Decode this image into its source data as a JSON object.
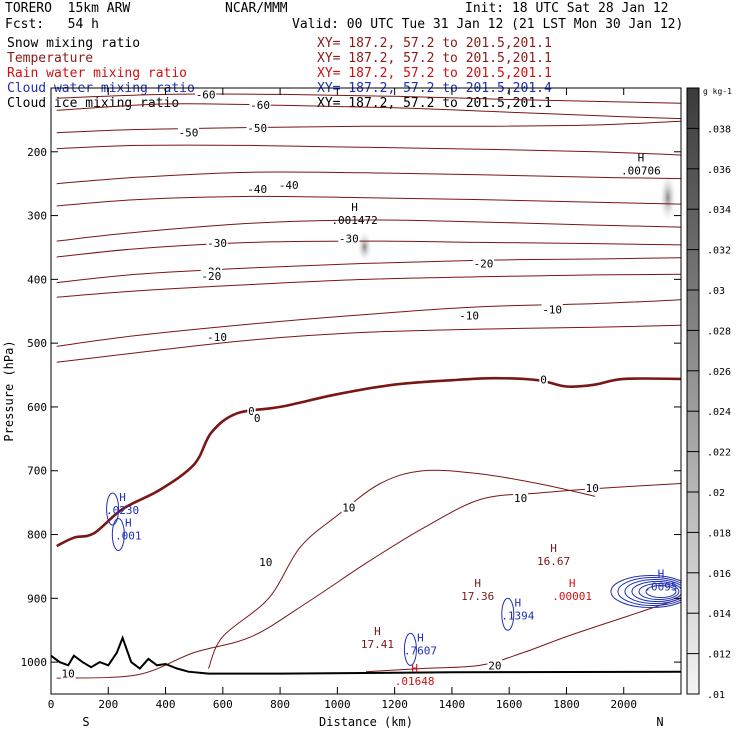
{
  "header": {
    "model": "TORERO  15km ARW",
    "org": "NCAR/MMM",
    "init": "Init: 18 UTC Sat 28 Jan 12",
    "fcst": "Fcst:   54 h",
    "valid": "Valid: 00 UTC Tue 31 Jan 12 (21 LST Mon 30 Jan 12)"
  },
  "legend": [
    {
      "label": "Snow mixing ratio",
      "xy": "XY= 187.2, 57.2 to 201.5,201.1",
      "label_color": "#000000",
      "xy_color": "#8b1a1a"
    },
    {
      "label": "Temperature",
      "xy": "XY= 187.2, 57.2 to 201.5,201.1",
      "label_color": "#8b1a1a",
      "xy_color": "#8b1a1a"
    },
    {
      "label": "Rain water mixing ratio",
      "xy": "XY= 187.2, 57.2 to 201.5,201.1",
      "label_color": "#d01010",
      "xy_color": "#d01010"
    },
    {
      "label": "Cloud water mixing ratio",
      "xy": "XY= 187.2, 57.2 to 201.5,201.4",
      "label_color": "#1e2fb4",
      "xy_color": "#1e2fb4"
    },
    {
      "label": "Cloud ice mixing ratio",
      "xy": "XY= 187.2, 57.2 to 201.5,201.1",
      "label_color": "#000000",
      "xy_color": "#000000"
    }
  ],
  "colors": {
    "temperature": "#7a1616",
    "rain": "#d01010",
    "cloud_water": "#1e2fb4",
    "terrain": "#000000"
  },
  "chart_data": {
    "type": "heatmap",
    "xlabel": "Distance (km)",
    "ylabel": "Pressure (hPa)",
    "xlim": [
      0,
      2200
    ],
    "ylim": [
      1050,
      100
    ],
    "x_ticks": [
      0,
      200,
      400,
      600,
      800,
      1000,
      1200,
      1400,
      1600,
      1800,
      2000
    ],
    "y_ticks": [
      200,
      300,
      400,
      500,
      600,
      700,
      800,
      900,
      1000
    ],
    "x_end_labels": [
      "S",
      "N"
    ],
    "colorbar": {
      "unit": "g kg-1",
      "ticks": [
        ".01",
        ".012",
        ".014",
        ".016",
        ".018",
        ".02",
        ".022",
        ".024",
        ".026",
        ".028",
        ".03",
        ".032",
        ".034",
        ".036",
        ".038"
      ],
      "range": [
        0.01,
        0.04
      ]
    },
    "temperature_contours": [
      {
        "value": -60,
        "label": "-60",
        "points": [
          [
            20,
            116
          ],
          [
            400,
            110
          ],
          [
            800,
            110
          ],
          [
            1200,
            113
          ],
          [
            1600,
            118
          ],
          [
            2000,
            122
          ],
          [
            2200,
            124
          ]
        ],
        "labels_at": [
          [
            540,
            110
          ]
        ]
      },
      {
        "value": -60,
        "label": "-60",
        "points": [
          [
            20,
            135
          ],
          [
            400,
            125
          ],
          [
            800,
            127
          ],
          [
            1200,
            131
          ],
          [
            1600,
            138
          ],
          [
            2000,
            145
          ],
          [
            2200,
            148
          ]
        ],
        "labels_at": [
          [
            730,
            127
          ]
        ]
      },
      {
        "value": -50,
        "label": "-50",
        "points": [
          [
            20,
            170
          ],
          [
            300,
            165
          ],
          [
            700,
            162
          ],
          [
            1100,
            160
          ],
          [
            1500,
            160
          ],
          [
            1900,
            158
          ],
          [
            2200,
            152
          ]
        ],
        "labels_at": [
          [
            480,
            170
          ],
          [
            720,
            163
          ]
        ]
      },
      {
        "value": -50,
        "label": "-50",
        "points": [
          [
            20,
            195
          ],
          [
            300,
            190
          ],
          [
            700,
            190
          ],
          [
            1100,
            193
          ],
          [
            1500,
            196
          ],
          [
            1900,
            200
          ],
          [
            2200,
            205
          ]
        ],
        "labels_at": []
      },
      {
        "value": -40,
        "label": "-40",
        "points": [
          [
            20,
            250
          ],
          [
            300,
            240
          ],
          [
            700,
            232
          ],
          [
            1100,
            233
          ],
          [
            1500,
            236
          ],
          [
            1900,
            240
          ],
          [
            2200,
            242
          ]
        ],
        "labels_at": [
          [
            720,
            258
          ],
          [
            830,
            252
          ]
        ]
      },
      {
        "value": -40,
        "label": "-40",
        "points": [
          [
            20,
            285
          ],
          [
            300,
            275
          ],
          [
            700,
            270
          ],
          [
            1100,
            272
          ],
          [
            1500,
            275
          ],
          [
            1900,
            279
          ],
          [
            2200,
            282
          ]
        ],
        "labels_at": []
      },
      {
        "value": -30,
        "label": "-30",
        "points": [
          [
            20,
            340
          ],
          [
            300,
            326
          ],
          [
            700,
            312
          ],
          [
            1100,
            307
          ],
          [
            1500,
            310
          ],
          [
            1900,
            315
          ],
          [
            2200,
            318
          ]
        ],
        "labels_at": [
          [
            1040,
            336
          ],
          [
            580,
            343
          ]
        ]
      },
      {
        "value": -30,
        "label": "-30",
        "points": [
          [
            20,
            365
          ],
          [
            300,
            352
          ],
          [
            700,
            342
          ],
          [
            1100,
            340
          ],
          [
            1500,
            342
          ],
          [
            1900,
            344
          ],
          [
            2200,
            346
          ]
        ],
        "labels_at": []
      },
      {
        "value": -20,
        "label": "-20",
        "points": [
          [
            20,
            405
          ],
          [
            300,
            392
          ],
          [
            700,
            382
          ],
          [
            1100,
            375
          ],
          [
            1500,
            370
          ],
          [
            1900,
            368
          ],
          [
            2200,
            366
          ]
        ],
        "labels_at": [
          [
            560,
            388
          ],
          [
            560,
            395
          ],
          [
            1510,
            375
          ]
        ]
      },
      {
        "value": -20,
        "label": "-20",
        "points": [
          [
            20,
            428
          ],
          [
            300,
            418
          ],
          [
            700,
            408
          ],
          [
            1100,
            400
          ],
          [
            1500,
            396
          ],
          [
            1900,
            393
          ],
          [
            2200,
            392
          ]
        ],
        "labels_at": []
      },
      {
        "value": -10,
        "label": "-10",
        "points": [
          [
            20,
            505
          ],
          [
            300,
            488
          ],
          [
            700,
            470
          ],
          [
            1100,
            455
          ],
          [
            1500,
            443
          ],
          [
            1900,
            438
          ],
          [
            2200,
            432
          ]
        ],
        "labels_at": [
          [
            580,
            490
          ],
          [
            1460,
            457
          ],
          [
            1750,
            447
          ]
        ]
      },
      {
        "value": -10,
        "label": "-10",
        "points": [
          [
            20,
            530
          ],
          [
            300,
            515
          ],
          [
            700,
            495
          ],
          [
            1100,
            483
          ],
          [
            1500,
            478
          ],
          [
            1900,
            475
          ],
          [
            2200,
            472
          ]
        ],
        "labels_at": []
      },
      {
        "value": 0,
        "label": "0",
        "bold": true,
        "points": [
          [
            20,
            818
          ],
          [
            80,
            805
          ],
          [
            150,
            798
          ],
          [
            250,
            760
          ],
          [
            380,
            730
          ],
          [
            500,
            690
          ],
          [
            560,
            640
          ],
          [
            650,
            610
          ],
          [
            800,
            600
          ],
          [
            1000,
            580
          ],
          [
            1200,
            565
          ],
          [
            1400,
            558
          ],
          [
            1550,
            555
          ],
          [
            1700,
            558
          ],
          [
            1800,
            568
          ],
          [
            1900,
            565
          ],
          [
            2000,
            556
          ],
          [
            2200,
            556
          ]
        ],
        "labels_at": [
          [
            1720,
            557
          ],
          [
            700,
            606
          ],
          [
            720,
            617
          ]
        ]
      },
      {
        "value": 10,
        "label": "10",
        "points": [
          [
            20,
            1025
          ],
          [
            300,
            1020
          ],
          [
            500,
            985
          ],
          [
            700,
            960
          ],
          [
            900,
            905
          ],
          [
            1100,
            845
          ],
          [
            1300,
            790
          ],
          [
            1500,
            745
          ],
          [
            1700,
            735
          ],
          [
            1900,
            728
          ],
          [
            2200,
            720
          ]
        ],
        "labels_at": [
          [
            60,
            1018
          ],
          [
            750,
            843
          ],
          [
            1040,
            758
          ],
          [
            1640,
            743
          ],
          [
            1890,
            727
          ]
        ]
      },
      {
        "value": 10,
        "label": "10",
        "points": [
          [
            550,
            1010
          ],
          [
            600,
            960
          ],
          [
            760,
            900
          ],
          [
            870,
            820
          ],
          [
            1000,
            770
          ],
          [
            1150,
            720
          ],
          [
            1300,
            700
          ],
          [
            1500,
            705
          ],
          [
            1700,
            720
          ],
          [
            1900,
            740
          ]
        ],
        "labels_at": []
      },
      {
        "value": 20,
        "label": "20",
        "points": [
          [
            1100,
            1015
          ],
          [
            1300,
            1010
          ],
          [
            1500,
            1005
          ],
          [
            1650,
            985
          ],
          [
            1800,
            960
          ],
          [
            2000,
            930
          ],
          [
            2200,
            900
          ]
        ],
        "labels_at": [
          [
            1550,
            1005
          ]
        ]
      }
    ],
    "maxima": [
      {
        "field": "cloud_ice",
        "label": ".001472",
        "x": 1060,
        "p": 305
      },
      {
        "field": "cloud_ice",
        "label": ".00706",
        "x": 2060,
        "p": 228
      },
      {
        "field": "cloud_water",
        "label": ".0230",
        "x": 250,
        "p": 760
      },
      {
        "field": "cloud_water",
        "label": ".001",
        "x": 270,
        "p": 800
      },
      {
        "field": "temperature",
        "label": "16.67",
        "x": 1755,
        "p": 840
      },
      {
        "field": "temperature",
        "label": "17.36",
        "x": 1490,
        "p": 895
      },
      {
        "field": "cloud_water",
        "label": ".1394",
        "x": 1630,
        "p": 925
      },
      {
        "field": "rain",
        "label": ".00001",
        "x": 1820,
        "p": 895
      },
      {
        "field": "cloud_water",
        "label": ".0095",
        "x": 2130,
        "p": 880
      },
      {
        "field": "temperature",
        "label": "17.41",
        "x": 1140,
        "p": 970
      },
      {
        "field": "cloud_water",
        "label": ".7607",
        "x": 1290,
        "p": 980
      },
      {
        "field": "rain",
        "label": ".01648",
        "x": 1270,
        "p": 1028
      }
    ],
    "terrain": [
      [
        0,
        990
      ],
      [
        30,
        1000
      ],
      [
        60,
        1005
      ],
      [
        80,
        990
      ],
      [
        110,
        1000
      ],
      [
        140,
        1008
      ],
      [
        170,
        1000
      ],
      [
        200,
        1005
      ],
      [
        230,
        985
      ],
      [
        250,
        962
      ],
      [
        280,
        1000
      ],
      [
        310,
        1010
      ],
      [
        340,
        995
      ],
      [
        370,
        1005
      ],
      [
        400,
        1003
      ],
      [
        440,
        1010
      ],
      [
        480,
        1015
      ],
      [
        550,
        1018
      ],
      [
        800,
        1018
      ],
      [
        1400,
        1016
      ],
      [
        2200,
        1015
      ]
    ]
  }
}
